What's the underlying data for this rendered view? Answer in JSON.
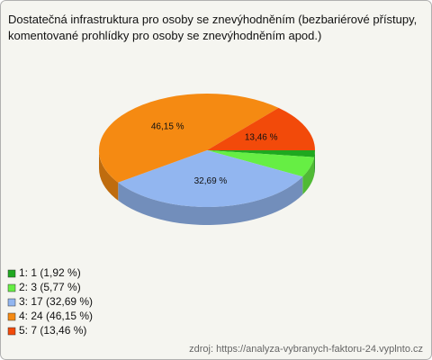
{
  "chart_data": {
    "type": "pie3d",
    "title": "Dostatečná infrastruktura pro osoby se znevýhodněním (bezbariérové přístupy, komentované prohlídky pro osoby se znevýhodněním apod.)",
    "categories": [
      "1",
      "2",
      "3",
      "4",
      "5"
    ],
    "values": [
      1.92,
      5.77,
      32.69,
      46.15,
      13.46
    ],
    "value_labels": [
      null,
      null,
      "32,69 %",
      "46,15 %",
      "13,46 %"
    ],
    "colors": [
      "#1fa81f",
      "#66ee44",
      "#92b6f0",
      "#f58a12",
      "#f24a0a"
    ],
    "legend": [
      "1: 1 (1,92 %)",
      "2: 3 (5,77 %)",
      "3: 17 (32,69 %)",
      "4: 24 (46,15 %)",
      "5: 7 (13,46 %)"
    ],
    "source": "zdroj: https://analyza-vybranych-faktoru-24.vyplnto.cz"
  }
}
